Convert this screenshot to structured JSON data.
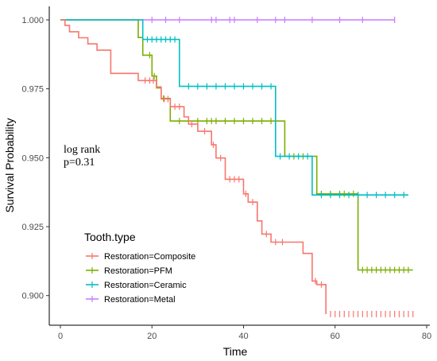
{
  "chart_data": {
    "type": "line",
    "xlabel": "Time",
    "ylabel": "Survival Probability",
    "xlim": [
      0,
      80
    ],
    "ylim": [
      0.893,
      1.0
    ],
    "xticks": [
      0,
      20,
      40,
      60,
      80
    ],
    "yticks": [
      0.9,
      0.925,
      0.95,
      0.975,
      1.0
    ],
    "ytick_labels": [
      "0.900",
      "0.925",
      "0.950",
      "0.975",
      "1.000"
    ],
    "grid": false,
    "legend": {
      "title": "Tooth.type",
      "placement": "bottom-left"
    },
    "annotation": [
      "log rank",
      "p=0.31"
    ],
    "series": [
      {
        "name": "Restoration=Composite",
        "color": "#F8766D",
        "steps": [
          [
            0,
            1.0
          ],
          [
            1,
            0.998
          ],
          [
            2,
            0.9957
          ],
          [
            4,
            0.9935
          ],
          [
            6,
            0.9913
          ],
          [
            8,
            0.989
          ],
          [
            11,
            0.9806
          ],
          [
            17,
            0.978
          ],
          [
            21,
            0.9757
          ],
          [
            22,
            0.9713
          ],
          [
            24,
            0.9685
          ],
          [
            27,
            0.9648
          ],
          [
            28,
            0.9622
          ],
          [
            30,
            0.9596
          ],
          [
            33,
            0.9547
          ],
          [
            34,
            0.9499
          ],
          [
            36,
            0.9422
          ],
          [
            40,
            0.9369
          ],
          [
            41,
            0.9339
          ],
          [
            43,
            0.9271
          ],
          [
            44,
            0.9223
          ],
          [
            46,
            0.9194
          ],
          [
            53,
            0.9153
          ],
          [
            55,
            0.9053
          ],
          [
            56,
            0.904
          ],
          [
            58,
            0.8933
          ]
        ],
        "censor_times": [
          18.5,
          19.5,
          20.3,
          22.7,
          23.5,
          25,
          26,
          28.7,
          31.5,
          33.4,
          35,
          37,
          38,
          39,
          40.5,
          42,
          45,
          47,
          48.5,
          55.7,
          57,
          59,
          60,
          61,
          62,
          63,
          64,
          65,
          66,
          67,
          68,
          69,
          70,
          71,
          72,
          73,
          74,
          75,
          76,
          77
        ]
      },
      {
        "name": "Restoration=PFM",
        "color": "#7CAE00",
        "steps": [
          [
            0,
            1.0
          ],
          [
            17,
            0.9936
          ],
          [
            18,
            0.9872
          ],
          [
            20,
            0.9796
          ],
          [
            21,
            0.9753
          ],
          [
            22,
            0.9715
          ],
          [
            24,
            0.9633
          ],
          [
            49,
            0.9505
          ],
          [
            56,
            0.9369
          ],
          [
            65,
            0.9093
          ],
          [
            77,
            0.9093
          ]
        ],
        "censor_times": [
          19.5,
          20.5,
          22.5,
          26,
          28,
          30,
          32,
          33,
          34,
          36,
          38,
          40,
          42,
          44,
          46,
          51,
          53,
          57,
          59,
          61,
          62,
          64,
          66,
          67,
          68,
          69,
          70,
          71,
          72,
          73,
          74,
          75,
          76
        ]
      },
      {
        "name": "Restoration=Ceramic",
        "color": "#00BFC4",
        "steps": [
          [
            0,
            1.0
          ],
          [
            18,
            0.9929
          ],
          [
            26,
            0.9759
          ],
          [
            47,
            0.9505
          ],
          [
            55,
            0.9365
          ],
          [
            76,
            0.9365
          ]
        ],
        "censor_times": [
          19,
          20,
          21,
          22,
          23,
          24,
          25,
          28,
          30,
          32,
          34,
          36,
          38,
          40,
          42,
          44,
          46,
          48,
          50,
          52,
          54,
          57,
          59,
          61,
          63,
          65,
          67,
          69,
          71,
          73,
          75
        ]
      },
      {
        "name": "Restoration=Metal",
        "color": "#C77CFF",
        "steps": [
          [
            0,
            1.0
          ],
          [
            73,
            1.0
          ]
        ],
        "censor_times": [
          20,
          23,
          26,
          33,
          34,
          37,
          38,
          43,
          47,
          49,
          55,
          61,
          66,
          73
        ]
      }
    ]
  }
}
